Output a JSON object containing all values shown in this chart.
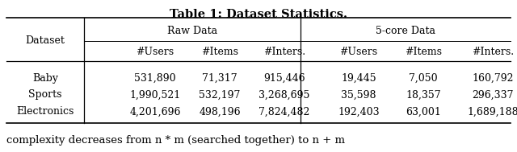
{
  "title": "Table 1: Dataset Statistics.",
  "rows": [
    {
      "dataset": "Baby",
      "raw_users": "531,890",
      "raw_items": "71,317",
      "raw_inters": "915,446",
      "core_users": "19,445",
      "core_items": "7,050",
      "core_inters": "160,792"
    },
    {
      "dataset": "Sports",
      "raw_users": "1,990,521",
      "raw_items": "532,197",
      "raw_inters": "3,268,695",
      "core_users": "35,598",
      "core_items": "18,357",
      "core_inters": "296,337"
    },
    {
      "dataset": "Electronics",
      "raw_users": "4,201,696",
      "raw_items": "498,196",
      "raw_inters": "7,824,482",
      "core_users": "192,403",
      "core_items": "63,001",
      "core_inters": "1,689,188"
    }
  ],
  "bg_color": "#ffffff",
  "text_color": "#000000",
  "footer_text": "complexity decreases from n * m (searched together) to n + m",
  "title_fontsize": 10.5,
  "body_fontsize": 9.0,
  "footer_fontsize": 9.5
}
